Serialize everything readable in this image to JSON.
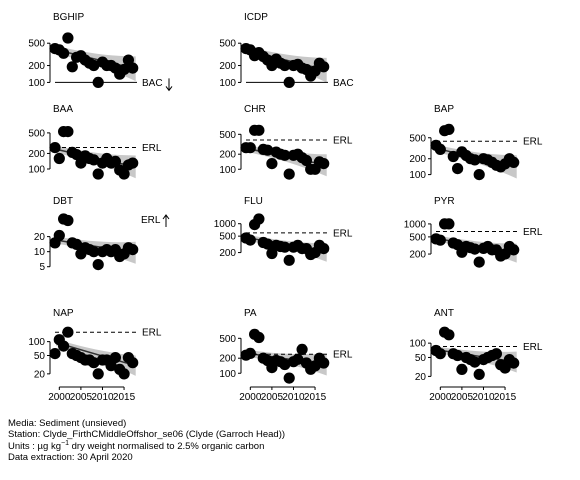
{
  "chart_data": [
    {
      "panel": "BGHIP",
      "type": "scatter",
      "title": "BGHIP",
      "log_y": true,
      "ylim": [
        90,
        700
      ],
      "yticks": [
        100,
        200,
        500
      ],
      "xlim": [
        1999,
        2018
      ],
      "x": [
        1999,
        2000,
        2001,
        2002,
        2003,
        2004,
        2005,
        2006,
        2007,
        2008,
        2009,
        2010,
        2011,
        2012,
        2013,
        2014,
        2015,
        2016,
        2017
      ],
      "y": [
        400,
        380,
        330,
        620,
        190,
        280,
        300,
        250,
        220,
        200,
        100,
        230,
        200,
        200,
        180,
        140,
        170,
        250,
        180
      ],
      "trend_start": 380,
      "trend_end": 175,
      "reference": {
        "label": "BAC",
        "value": 100,
        "style": "solid"
      },
      "trend_arrow": "down",
      "show_xticks": false
    },
    {
      "panel": "ICDP",
      "type": "scatter",
      "title": "ICDP",
      "log_y": true,
      "ylim": [
        90,
        700
      ],
      "yticks": [
        100,
        200,
        500
      ],
      "xlim": [
        1999,
        2018
      ],
      "x": [
        1999,
        2000,
        2001,
        2002,
        2003,
        2004,
        2005,
        2006,
        2007,
        2008,
        2009,
        2010,
        2011,
        2012,
        2013,
        2014,
        2015,
        2016,
        2017
      ],
      "y": [
        400,
        380,
        300,
        340,
        290,
        250,
        200,
        260,
        220,
        200,
        100,
        200,
        210,
        180,
        170,
        130,
        160,
        220,
        190
      ],
      "trend_start": 370,
      "trend_end": 165,
      "reference": {
        "label": "BAC",
        "value": 100,
        "style": "solid"
      },
      "trend_arrow": "",
      "show_xticks": false
    },
    {
      "panel": "BAA",
      "type": "scatter",
      "title": "BAA",
      "log_y": true,
      "ylim": [
        70,
        650
      ],
      "yticks": [
        100,
        200,
        500
      ],
      "xlim": [
        1999,
        2018
      ],
      "x": [
        1999,
        2000,
        2001,
        2002,
        2003,
        2004,
        2005,
        2006,
        2007,
        2008,
        2009,
        2010,
        2011,
        2012,
        2013,
        2014,
        2015,
        2016,
        2017
      ],
      "y": [
        260,
        160,
        530,
        530,
        210,
        190,
        130,
        180,
        160,
        150,
        80,
        130,
        160,
        130,
        140,
        95,
        80,
        120,
        130
      ],
      "trend_start": 240,
      "trend_end": 110,
      "reference": {
        "label": "ERL",
        "value": 261,
        "style": "dashed"
      },
      "trend_arrow": "",
      "show_xticks": false
    },
    {
      "panel": "CHR",
      "type": "scatter",
      "title": "CHR",
      "log_y": true,
      "ylim": [
        70,
        700
      ],
      "yticks": [
        100,
        200,
        500
      ],
      "xlim": [
        1999,
        2018
      ],
      "x": [
        1999,
        2000,
        2001,
        2002,
        2003,
        2004,
        2005,
        2006,
        2007,
        2008,
        2009,
        2010,
        2011,
        2012,
        2013,
        2014,
        2015,
        2016,
        2017
      ],
      "y": [
        270,
        270,
        600,
        600,
        250,
        240,
        130,
        220,
        200,
        190,
        80,
        190,
        200,
        170,
        150,
        100,
        100,
        140,
        130
      ],
      "trend_start": 260,
      "trend_end": 120,
      "reference": {
        "label": "ERL",
        "value": 384,
        "style": "dashed"
      },
      "trend_arrow": "",
      "show_xticks": false
    },
    {
      "panel": "BAP",
      "type": "scatter",
      "title": "BAP",
      "log_y": true,
      "ylim": [
        90,
        800
      ],
      "yticks": [
        100,
        200,
        500
      ],
      "xlim": [
        1999,
        2018
      ],
      "x": [
        1999,
        2000,
        2001,
        2002,
        2003,
        2004,
        2005,
        2006,
        2007,
        2008,
        2009,
        2010,
        2011,
        2012,
        2013,
        2014,
        2015,
        2016,
        2017
      ],
      "y": [
        360,
        300,
        680,
        720,
        220,
        130,
        270,
        230,
        200,
        190,
        100,
        200,
        190,
        170,
        150,
        140,
        160,
        200,
        170
      ],
      "trend_start": 310,
      "trend_end": 140,
      "reference": {
        "label": "ERL",
        "value": 430,
        "style": "dashed"
      },
      "trend_arrow": "",
      "show_xticks": false
    },
    {
      "panel": "DBT",
      "type": "scatter",
      "title": "DBT",
      "log_y": true,
      "ylim": [
        4.5,
        45
      ],
      "yticks": [
        5,
        10,
        20
      ],
      "xlim": [
        1999,
        2018
      ],
      "x": [
        1999,
        2000,
        2001,
        2002,
        2003,
        2004,
        2005,
        2006,
        2007,
        2008,
        2009,
        2010,
        2011,
        2012,
        2013,
        2014,
        2015,
        2016,
        2017
      ],
      "y": [
        15,
        21,
        45,
        42,
        15,
        14,
        9,
        12,
        11,
        10,
        5.5,
        10,
        11,
        10,
        11,
        8,
        9,
        12,
        11
      ],
      "trend_start": 17,
      "trend_end": 9.5,
      "reference": {
        "label": "ERL",
        "value": null,
        "style": "none"
      },
      "trend_arrow": "up",
      "show_xticks": false
    },
    {
      "panel": "FLU",
      "type": "scatter",
      "title": "FLU",
      "log_y": true,
      "ylim": [
        80,
        1300
      ],
      "yticks": [
        200,
        500,
        1000
      ],
      "xlim": [
        1999,
        2018
      ],
      "x": [
        1999,
        2000,
        2001,
        2002,
        2003,
        2004,
        2005,
        2006,
        2007,
        2008,
        2009,
        2010,
        2011,
        2012,
        2013,
        2014,
        2015,
        2016,
        2017
      ],
      "y": [
        450,
        400,
        950,
        1300,
        350,
        320,
        190,
        300,
        280,
        270,
        130,
        270,
        300,
        250,
        250,
        180,
        200,
        300,
        250
      ],
      "trend_start": 460,
      "trend_end": 200,
      "reference": {
        "label": "ERL",
        "value": 600,
        "style": "dashed"
      },
      "trend_arrow": "",
      "show_xticks": false
    },
    {
      "panel": "PYR",
      "type": "scatter",
      "title": "PYR",
      "log_y": true,
      "ylim": [
        90,
        1300
      ],
      "yticks": [
        200,
        500,
        1000
      ],
      "xlim": [
        1999,
        2018
      ],
      "x": [
        1999,
        2000,
        2001,
        2002,
        2003,
        2004,
        2005,
        2006,
        2007,
        2008,
        2009,
        2010,
        2011,
        2012,
        2013,
        2014,
        2015,
        2016,
        2017
      ],
      "y": [
        450,
        420,
        1000,
        1000,
        360,
        330,
        220,
        300,
        280,
        260,
        130,
        270,
        300,
        250,
        250,
        180,
        200,
        300,
        250
      ],
      "trend_start": 460,
      "trend_end": 210,
      "reference": {
        "label": "ERL",
        "value": 665,
        "style": "dashed"
      },
      "trend_arrow": "",
      "show_xticks": false
    },
    {
      "panel": "NAP",
      "type": "scatter",
      "title": "NAP",
      "log_y": true,
      "ylim": [
        14,
        170
      ],
      "yticks": [
        20,
        50,
        100
      ],
      "xlim": [
        1999,
        2018
      ],
      "x": [
        1999,
        2000,
        2001,
        2002,
        2003,
        2004,
        2005,
        2006,
        2007,
        2008,
        2009,
        2010,
        2011,
        2012,
        2013,
        2014,
        2015,
        2016,
        2017
      ],
      "y": [
        55,
        110,
        80,
        160,
        55,
        50,
        45,
        40,
        40,
        35,
        20,
        40,
        40,
        30,
        45,
        25,
        20,
        45,
        35
      ],
      "trend_start": 95,
      "trend_end": 30,
      "reference": {
        "label": "ERL",
        "value": 160,
        "style": "dashed"
      },
      "trend_arrow": "",
      "show_xticks": true
    },
    {
      "panel": "PA",
      "type": "scatter",
      "title": "PA",
      "log_y": true,
      "ylim": [
        70,
        700
      ],
      "yticks": [
        100,
        200,
        500
      ],
      "xlim": [
        1999,
        2018
      ],
      "x": [
        1999,
        2000,
        2001,
        2002,
        2003,
        2004,
        2005,
        2006,
        2007,
        2008,
        2009,
        2010,
        2011,
        2012,
        2013,
        2014,
        2015,
        2016,
        2017
      ],
      "y": [
        230,
        250,
        600,
        520,
        200,
        180,
        130,
        180,
        170,
        150,
        80,
        170,
        190,
        300,
        160,
        120,
        140,
        200,
        160
      ],
      "trend_start": 250,
      "trend_end": 150,
      "reference": {
        "label": "ERL",
        "value": 240,
        "style": "dashed"
      },
      "trend_arrow": "",
      "show_xticks": true
    },
    {
      "panel": "ANT",
      "type": "scatter",
      "title": "ANT",
      "log_y": true,
      "ylim": [
        16,
        180
      ],
      "yticks": [
        20,
        50,
        100
      ],
      "xlim": [
        1999,
        2018
      ],
      "x": [
        1999,
        2000,
        2001,
        2002,
        2003,
        2004,
        2005,
        2006,
        2007,
        2008,
        2009,
        2010,
        2011,
        2012,
        2013,
        2014,
        2015,
        2016,
        2017
      ],
      "y": [
        70,
        60,
        170,
        150,
        60,
        55,
        28,
        50,
        45,
        40,
        22,
        45,
        50,
        55,
        60,
        35,
        30,
        45,
        38
      ],
      "trend_start": 72,
      "trend_end": 40,
      "reference": {
        "label": "ERL",
        "value": 85,
        "style": "dashed"
      },
      "trend_arrow": "",
      "show_xticks": true
    }
  ],
  "x_tick_labels": [
    "2000",
    "2005",
    "2010",
    "2015"
  ],
  "footer": {
    "media": "Media: Sediment (unsieved)",
    "station": "Station: Clyde_FirthCMiddleOffshor_se06 (Clyde (Garroch Head))",
    "units_prefix": "Units : µg kg",
    "units_exponent": "−1",
    "units_suffix": " dry weight normalised to 2.5% organic carbon",
    "extraction": "Data extraction: 30 April 2020"
  },
  "colors": {
    "points": "#000000",
    "band": "#c8c8c8",
    "trend": "#333333",
    "axis": "#000000"
  }
}
